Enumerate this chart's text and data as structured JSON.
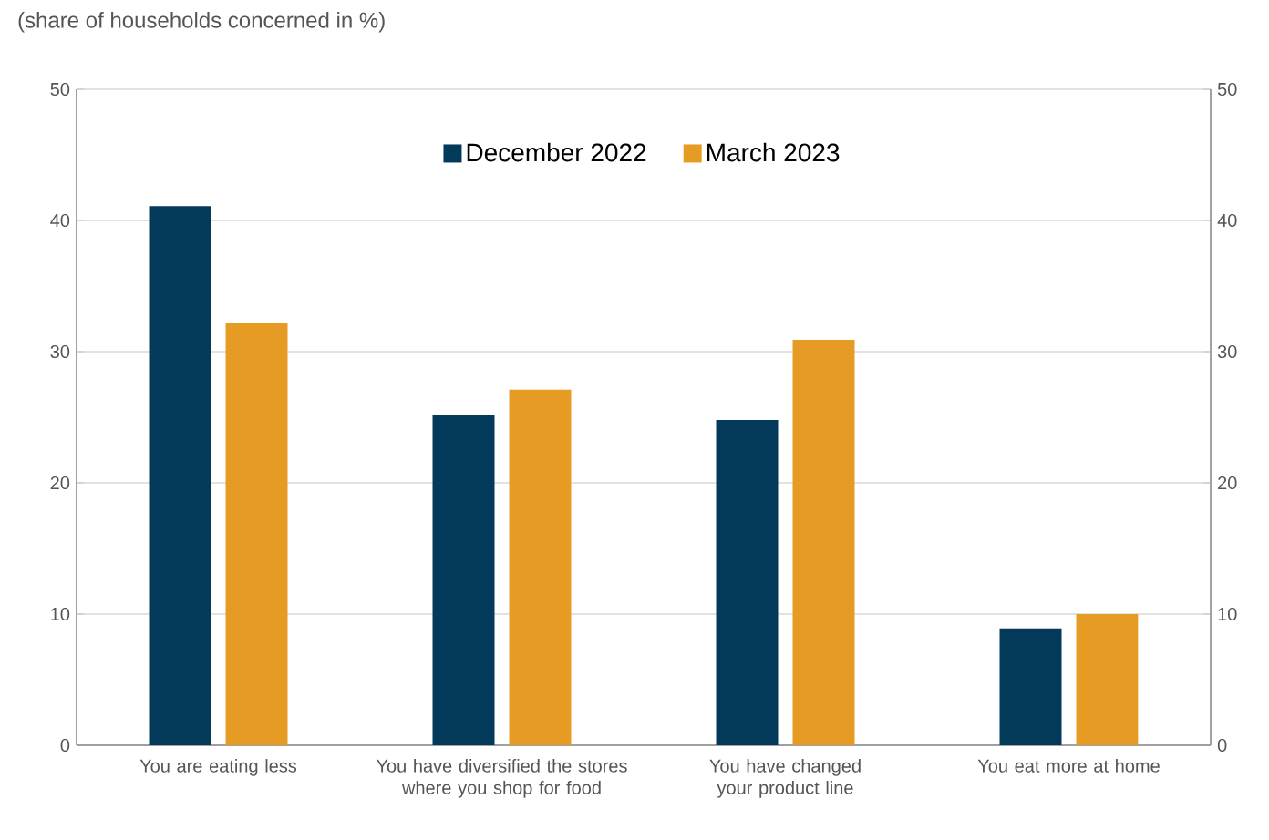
{
  "chart_data": {
    "type": "bar",
    "subtitle": "(share of households concerned in %)",
    "categories": [
      "You are eating less",
      "You have diversified the stores where you shop for food",
      "You have changed your product line",
      "You eat more at home"
    ],
    "series": [
      {
        "name": "December 2022",
        "color": "#033a5a",
        "values": [
          41.1,
          25.2,
          24.8,
          8.9
        ]
      },
      {
        "name": "March 2023",
        "color": "#e69c24",
        "values": [
          32.2,
          27.1,
          30.9,
          10.0
        ]
      }
    ],
    "ylim": [
      0,
      50
    ],
    "yticks": [
      0,
      10,
      20,
      30,
      40,
      50
    ],
    "y2lim": [
      0,
      50
    ],
    "y2ticks": [
      0,
      10,
      20,
      30,
      40,
      50
    ],
    "grid": "y",
    "legend": "top"
  }
}
